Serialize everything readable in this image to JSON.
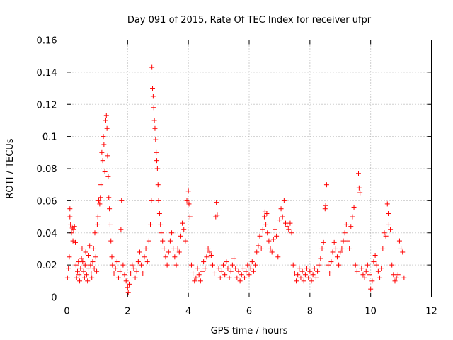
{
  "chart_data": {
    "type": "scatter",
    "title": "Day 091 of 2015, Rate Of TEC Index for receiver ufpr",
    "xlabel": "GPS time / hours",
    "ylabel": "ROTI / TECUs",
    "xlim": [
      0,
      12
    ],
    "ylim": [
      0,
      0.16
    ],
    "xticks": [
      0,
      2,
      4,
      6,
      8,
      10,
      12
    ],
    "yticks": [
      0,
      0.02,
      0.04,
      0.06,
      0.08,
      0.1,
      0.12,
      0.14,
      0.16
    ],
    "xtick_labels": [
      "0",
      "2",
      "4",
      "6",
      "8",
      "10",
      "12"
    ],
    "ytick_labels": [
      "0",
      "0.02",
      "0.04",
      "0.06",
      "0.08",
      "0.1",
      "0.12",
      "0.14",
      "0.16"
    ],
    "grid": true,
    "marker": "+",
    "color": "#ff0000",
    "series": [
      {
        "name": "ROTI",
        "points": [
          [
            0.02,
            0.012
          ],
          [
            0.05,
            0.018
          ],
          [
            0.08,
            0.025
          ],
          [
            0.1,
            0.05
          ],
          [
            0.1,
            0.055
          ],
          [
            0.12,
            0.045
          ],
          [
            0.15,
            0.04
          ],
          [
            0.18,
            0.043
          ],
          [
            0.2,
            0.035
          ],
          [
            0.22,
            0.042
          ],
          [
            0.25,
            0.044
          ],
          [
            0.28,
            0.034
          ],
          [
            0.3,
            0.02
          ],
          [
            0.32,
            0.012
          ],
          [
            0.35,
            0.016
          ],
          [
            0.38,
            0.022
          ],
          [
            0.4,
            0.014
          ],
          [
            0.42,
            0.01
          ],
          [
            0.45,
            0.018
          ],
          [
            0.48,
            0.024
          ],
          [
            0.5,
            0.03
          ],
          [
            0.52,
            0.022
          ],
          [
            0.55,
            0.016
          ],
          [
            0.58,
            0.012
          ],
          [
            0.6,
            0.02
          ],
          [
            0.62,
            0.028
          ],
          [
            0.65,
            0.014
          ],
          [
            0.68,
            0.01
          ],
          [
            0.7,
            0.018
          ],
          [
            0.72,
            0.026
          ],
          [
            0.75,
            0.032
          ],
          [
            0.78,
            0.02
          ],
          [
            0.8,
            0.015
          ],
          [
            0.82,
            0.012
          ],
          [
            0.85,
            0.022
          ],
          [
            0.88,
            0.03
          ],
          [
            0.9,
            0.018
          ],
          [
            0.92,
            0.04
          ],
          [
            0.95,
            0.025
          ],
          [
            0.98,
            0.016
          ],
          [
            1.0,
            0.045
          ],
          [
            1.02,
            0.05
          ],
          [
            1.05,
            0.06
          ],
          [
            1.08,
            0.058
          ],
          [
            1.1,
            0.062
          ],
          [
            1.12,
            0.07
          ],
          [
            1.15,
            0.09
          ],
          [
            1.18,
            0.085
          ],
          [
            1.2,
            0.1
          ],
          [
            1.22,
            0.095
          ],
          [
            1.25,
            0.078
          ],
          [
            1.28,
            0.11
          ],
          [
            1.3,
            0.113
          ],
          [
            1.32,
            0.105
          ],
          [
            1.34,
            0.088
          ],
          [
            1.36,
            0.075
          ],
          [
            1.38,
            0.062
          ],
          [
            1.4,
            0.055
          ],
          [
            1.42,
            0.045
          ],
          [
            1.45,
            0.035
          ],
          [
            1.48,
            0.025
          ],
          [
            1.5,
            0.02
          ],
          [
            1.55,
            0.015
          ],
          [
            1.6,
            0.018
          ],
          [
            1.65,
            0.022
          ],
          [
            1.7,
            0.012
          ],
          [
            1.75,
            0.016
          ],
          [
            1.78,
            0.042
          ],
          [
            1.8,
            0.06
          ],
          [
            1.85,
            0.02
          ],
          [
            1.9,
            0.014
          ],
          [
            1.95,
            0.01
          ],
          [
            2.0,
            0.006
          ],
          [
            2.02,
            0.003
          ],
          [
            2.05,
            0.008
          ],
          [
            2.1,
            0.015
          ],
          [
            2.15,
            0.02
          ],
          [
            2.2,
            0.018
          ],
          [
            2.25,
            0.012
          ],
          [
            2.3,
            0.016
          ],
          [
            2.35,
            0.022
          ],
          [
            2.4,
            0.028
          ],
          [
            2.45,
            0.02
          ],
          [
            2.5,
            0.015
          ],
          [
            2.55,
            0.025
          ],
          [
            2.6,
            0.03
          ],
          [
            2.65,
            0.022
          ],
          [
            2.7,
            0.035
          ],
          [
            2.75,
            0.045
          ],
          [
            2.78,
            0.06
          ],
          [
            2.8,
            0.143
          ],
          [
            2.82,
            0.13
          ],
          [
            2.84,
            0.125
          ],
          [
            2.86,
            0.118
          ],
          [
            2.88,
            0.11
          ],
          [
            2.9,
            0.105
          ],
          [
            2.92,
            0.098
          ],
          [
            2.94,
            0.09
          ],
          [
            2.96,
            0.085
          ],
          [
            2.98,
            0.08
          ],
          [
            3.0,
            0.07
          ],
          [
            3.02,
            0.06
          ],
          [
            3.05,
            0.052
          ],
          [
            3.08,
            0.045
          ],
          [
            3.1,
            0.04
          ],
          [
            3.15,
            0.035
          ],
          [
            3.2,
            0.03
          ],
          [
            3.25,
            0.025
          ],
          [
            3.3,
            0.02
          ],
          [
            3.35,
            0.028
          ],
          [
            3.4,
            0.035
          ],
          [
            3.45,
            0.04
          ],
          [
            3.5,
            0.03
          ],
          [
            3.55,
            0.025
          ],
          [
            3.6,
            0.02
          ],
          [
            3.65,
            0.03
          ],
          [
            3.7,
            0.028
          ],
          [
            3.75,
            0.038
          ],
          [
            3.8,
            0.046
          ],
          [
            3.85,
            0.042
          ],
          [
            3.9,
            0.035
          ],
          [
            3.95,
            0.06
          ],
          [
            4.0,
            0.066
          ],
          [
            4.02,
            0.058
          ],
          [
            4.05,
            0.05
          ],
          [
            4.1,
            0.02
          ],
          [
            4.15,
            0.015
          ],
          [
            4.2,
            0.01
          ],
          [
            4.25,
            0.012
          ],
          [
            4.3,
            0.018
          ],
          [
            4.35,
            0.014
          ],
          [
            4.4,
            0.01
          ],
          [
            4.45,
            0.016
          ],
          [
            4.5,
            0.022
          ],
          [
            4.55,
            0.018
          ],
          [
            4.6,
            0.025
          ],
          [
            4.65,
            0.03
          ],
          [
            4.7,
            0.028
          ],
          [
            4.75,
            0.026
          ],
          [
            4.8,
            0.02
          ],
          [
            4.85,
            0.015
          ],
          [
            4.9,
            0.05
          ],
          [
            4.92,
            0.059
          ],
          [
            4.95,
            0.051
          ],
          [
            5.0,
            0.018
          ],
          [
            5.05,
            0.012
          ],
          [
            5.1,
            0.016
          ],
          [
            5.15,
            0.02
          ],
          [
            5.2,
            0.014
          ],
          [
            5.25,
            0.022
          ],
          [
            5.3,
            0.018
          ],
          [
            5.35,
            0.012
          ],
          [
            5.4,
            0.016
          ],
          [
            5.45,
            0.02
          ],
          [
            5.5,
            0.024
          ],
          [
            5.55,
            0.018
          ],
          [
            5.6,
            0.012
          ],
          [
            5.65,
            0.016
          ],
          [
            5.7,
            0.01
          ],
          [
            5.75,
            0.014
          ],
          [
            5.8,
            0.018
          ],
          [
            5.85,
            0.012
          ],
          [
            5.9,
            0.016
          ],
          [
            5.95,
            0.02
          ],
          [
            6.0,
            0.014
          ],
          [
            6.05,
            0.018
          ],
          [
            6.1,
            0.022
          ],
          [
            6.15,
            0.016
          ],
          [
            6.2,
            0.02
          ],
          [
            6.25,
            0.028
          ],
          [
            6.3,
            0.032
          ],
          [
            6.35,
            0.038
          ],
          [
            6.4,
            0.03
          ],
          [
            6.45,
            0.042
          ],
          [
            6.5,
            0.05
          ],
          [
            6.52,
            0.053
          ],
          [
            6.55,
            0.045
          ],
          [
            6.58,
            0.052
          ],
          [
            6.6,
            0.04
          ],
          [
            6.65,
            0.035
          ],
          [
            6.7,
            0.03
          ],
          [
            6.75,
            0.028
          ],
          [
            6.8,
            0.036
          ],
          [
            6.85,
            0.042
          ],
          [
            6.9,
            0.038
          ],
          [
            6.95,
            0.025
          ],
          [
            7.0,
            0.048
          ],
          [
            7.05,
            0.055
          ],
          [
            7.1,
            0.05
          ],
          [
            7.15,
            0.06
          ],
          [
            7.2,
            0.046
          ],
          [
            7.25,
            0.044
          ],
          [
            7.3,
            0.042
          ],
          [
            7.35,
            0.046
          ],
          [
            7.4,
            0.04
          ],
          [
            7.45,
            0.02
          ],
          [
            7.5,
            0.015
          ],
          [
            7.55,
            0.01
          ],
          [
            7.6,
            0.014
          ],
          [
            7.65,
            0.018
          ],
          [
            7.7,
            0.012
          ],
          [
            7.75,
            0.016
          ],
          [
            7.8,
            0.01
          ],
          [
            7.85,
            0.014
          ],
          [
            7.9,
            0.018
          ],
          [
            7.95,
            0.012
          ],
          [
            8.0,
            0.016
          ],
          [
            8.05,
            0.01
          ],
          [
            8.1,
            0.014
          ],
          [
            8.15,
            0.018
          ],
          [
            8.2,
            0.012
          ],
          [
            8.25,
            0.016
          ],
          [
            8.3,
            0.02
          ],
          [
            8.35,
            0.024
          ],
          [
            8.4,
            0.03
          ],
          [
            8.45,
            0.034
          ],
          [
            8.5,
            0.055
          ],
          [
            8.52,
            0.057
          ],
          [
            8.55,
            0.07
          ],
          [
            8.6,
            0.02
          ],
          [
            8.65,
            0.015
          ],
          [
            8.7,
            0.022
          ],
          [
            8.75,
            0.028
          ],
          [
            8.8,
            0.034
          ],
          [
            8.85,
            0.03
          ],
          [
            8.9,
            0.025
          ],
          [
            8.95,
            0.02
          ],
          [
            9.0,
            0.028
          ],
          [
            9.05,
            0.03
          ],
          [
            9.1,
            0.035
          ],
          [
            9.15,
            0.04
          ],
          [
            9.2,
            0.045
          ],
          [
            9.25,
            0.035
          ],
          [
            9.3,
            0.03
          ],
          [
            9.35,
            0.044
          ],
          [
            9.4,
            0.05
          ],
          [
            9.45,
            0.056
          ],
          [
            9.5,
            0.02
          ],
          [
            9.55,
            0.016
          ],
          [
            9.6,
            0.077
          ],
          [
            9.62,
            0.068
          ],
          [
            9.65,
            0.065
          ],
          [
            9.7,
            0.018
          ],
          [
            9.75,
            0.014
          ],
          [
            9.8,
            0.012
          ],
          [
            9.85,
            0.016
          ],
          [
            9.9,
            0.02
          ],
          [
            9.95,
            0.014
          ],
          [
            10.0,
            0.005
          ],
          [
            10.05,
            0.01
          ],
          [
            10.1,
            0.022
          ],
          [
            10.15,
            0.026
          ],
          [
            10.2,
            0.02
          ],
          [
            10.25,
            0.016
          ],
          [
            10.3,
            0.012
          ],
          [
            10.35,
            0.018
          ],
          [
            10.4,
            0.03
          ],
          [
            10.45,
            0.04
          ],
          [
            10.5,
            0.038
          ],
          [
            10.55,
            0.058
          ],
          [
            10.58,
            0.052
          ],
          [
            10.6,
            0.045
          ],
          [
            10.65,
            0.042
          ],
          [
            10.7,
            0.02
          ],
          [
            10.75,
            0.014
          ],
          [
            10.8,
            0.01
          ],
          [
            10.85,
            0.012
          ],
          [
            10.9,
            0.014
          ],
          [
            10.95,
            0.035
          ],
          [
            11.0,
            0.03
          ],
          [
            11.05,
            0.028
          ],
          [
            11.1,
            0.012
          ]
        ]
      }
    ]
  }
}
